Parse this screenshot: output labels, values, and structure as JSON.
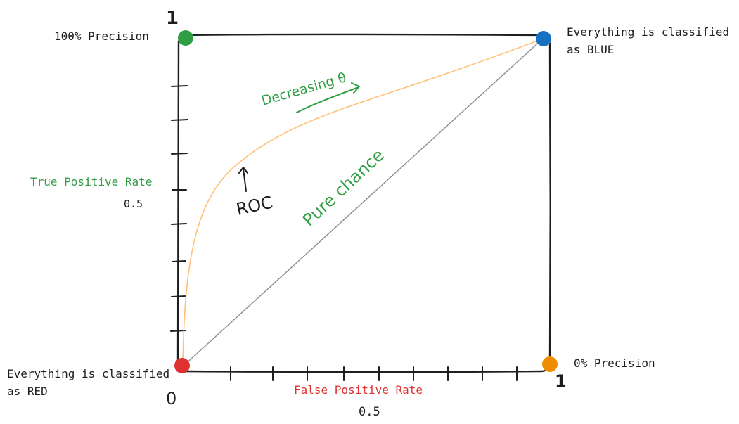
{
  "colors": {
    "ink": "#1e1e1e",
    "green": "#2f9e44",
    "red": "#e03131",
    "blue": "#1971c2",
    "orange": "#f08c00",
    "roc_curve": "#ffc078",
    "chance_line": "#868e96",
    "background": "#ffffff"
  },
  "axes": {
    "y_top_tick": "1",
    "x_right_tick": "1",
    "origin": "0",
    "y_mid_tick": "0.5",
    "x_mid_tick": "0.5",
    "y_label": "True Positive Rate",
    "x_label": "False Positive Rate"
  },
  "corners": {
    "top_left": {
      "label": "100% Precision",
      "color": "green"
    },
    "top_right": {
      "line1": "Everything is classified",
      "line2": "as BLUE",
      "color": "blue"
    },
    "bottom_left": {
      "line1": "Everything is classified",
      "line2": "as RED",
      "color": "red"
    },
    "bottom_right": {
      "label": "0% Precision",
      "color": "orange"
    }
  },
  "annotations": {
    "roc": "ROC",
    "pure_chance": "Pure chance",
    "decreasing_theta": "Decreasing θ"
  }
}
